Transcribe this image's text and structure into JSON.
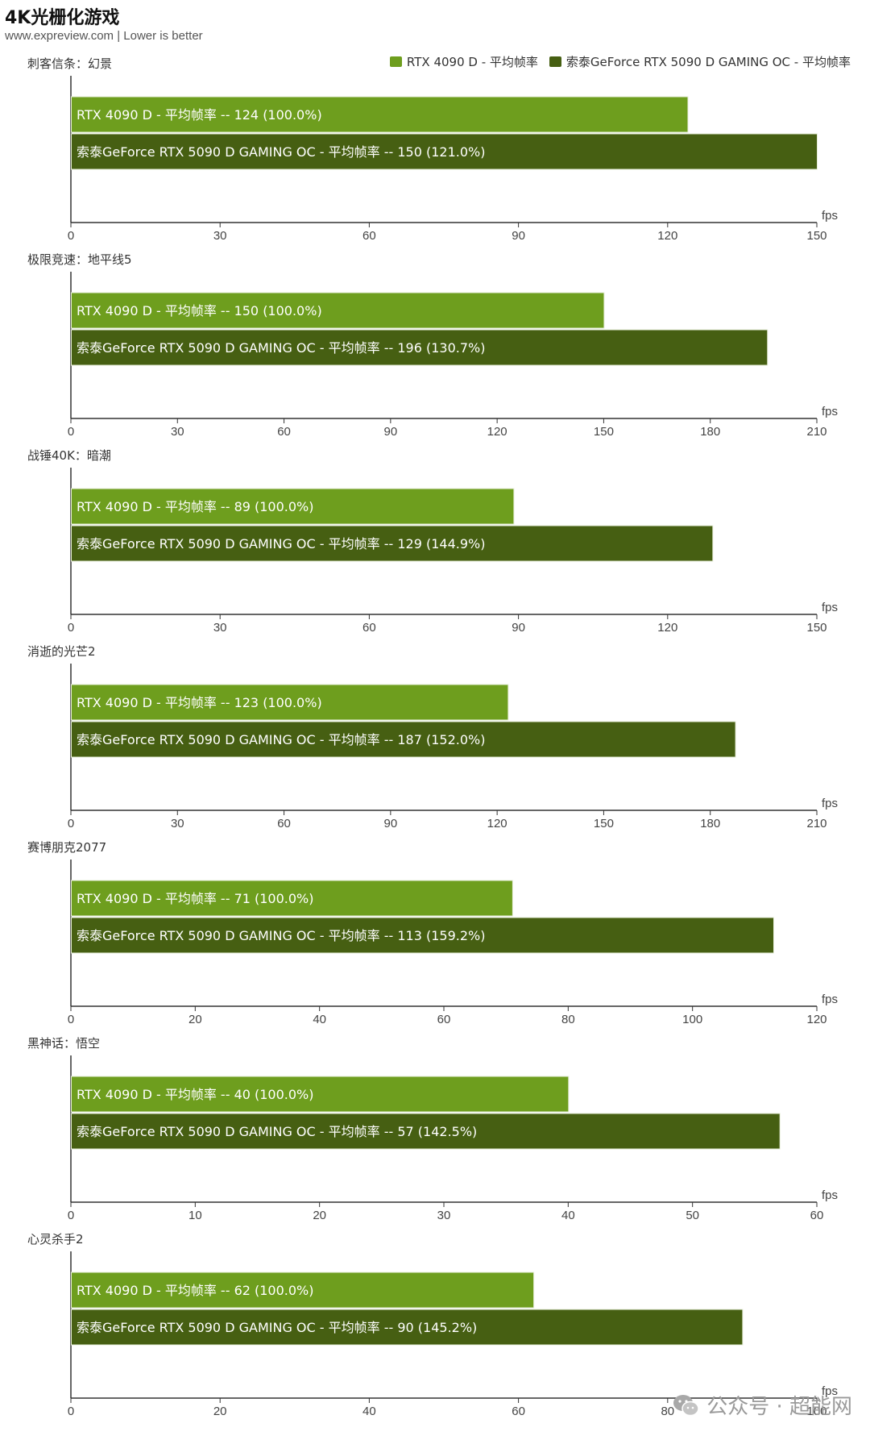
{
  "header": {
    "title": "4K光栅化游戏",
    "subtitle": "www.expreview.com | Lower is better"
  },
  "legend": [
    {
      "label": "RTX 4090 D - 平均帧率",
      "color": "#6e9e1e"
    },
    {
      "label": "索泰GeForce RTX 5090 D GAMING OC - 平均帧率",
      "color": "#465f12"
    }
  ],
  "colors": {
    "series_a": "#6e9e1e",
    "series_b": "#465f12",
    "axis": "#333333"
  },
  "chart_data": [
    {
      "type": "bar",
      "title": "刺客信条：幻景",
      "unit": "fps",
      "xlim": [
        0,
        150
      ],
      "ticks": [
        0,
        30,
        60,
        90,
        120,
        150
      ],
      "series": [
        {
          "name": "RTX 4090 D - 平均帧率",
          "value": 124,
          "label": "RTX 4090 D - 平均帧率  --  124 (100.0%)"
        },
        {
          "name": "索泰GeForce RTX 5090 D GAMING OC - 平均帧率",
          "value": 150,
          "label": "索泰GeForce RTX 5090 D GAMING OC - 平均帧率  --  150 (121.0%)"
        }
      ]
    },
    {
      "type": "bar",
      "title": "极限竞速：地平线5",
      "unit": "fps",
      "xlim": [
        0,
        210
      ],
      "ticks": [
        0,
        30,
        60,
        90,
        120,
        150,
        180,
        210
      ],
      "series": [
        {
          "name": "RTX 4090 D - 平均帧率",
          "value": 150,
          "label": "RTX 4090 D - 平均帧率  --  150 (100.0%)"
        },
        {
          "name": "索泰GeForce RTX 5090 D GAMING OC - 平均帧率",
          "value": 196,
          "label": "索泰GeForce RTX 5090 D GAMING OC - 平均帧率  --  196 (130.7%)"
        }
      ]
    },
    {
      "type": "bar",
      "title": "战锤40K：暗潮",
      "unit": "fps",
      "xlim": [
        0,
        150
      ],
      "ticks": [
        0,
        30,
        60,
        90,
        120,
        150
      ],
      "series": [
        {
          "name": "RTX 4090 D - 平均帧率",
          "value": 89,
          "label": "RTX 4090 D - 平均帧率  --  89 (100.0%)"
        },
        {
          "name": "索泰GeForce RTX 5090 D GAMING OC - 平均帧率",
          "value": 129,
          "label": "索泰GeForce RTX 5090 D GAMING OC - 平均帧率  --  129 (144.9%)"
        }
      ]
    },
    {
      "type": "bar",
      "title": "消逝的光芒2",
      "unit": "fps",
      "xlim": [
        0,
        210
      ],
      "ticks": [
        0,
        30,
        60,
        90,
        120,
        150,
        180,
        210
      ],
      "series": [
        {
          "name": "RTX 4090 D - 平均帧率",
          "value": 123,
          "label": "RTX 4090 D - 平均帧率  --  123 (100.0%)"
        },
        {
          "name": "索泰GeForce RTX 5090 D GAMING OC - 平均帧率",
          "value": 187,
          "label": "索泰GeForce RTX 5090 D GAMING OC - 平均帧率  --  187 (152.0%)"
        }
      ]
    },
    {
      "type": "bar",
      "title": "赛博朋克2077",
      "unit": "fps",
      "xlim": [
        0,
        120
      ],
      "ticks": [
        0,
        20,
        40,
        60,
        80,
        100,
        120
      ],
      "series": [
        {
          "name": "RTX 4090 D - 平均帧率",
          "value": 71,
          "label": "RTX 4090 D - 平均帧率  --  71 (100.0%)"
        },
        {
          "name": "索泰GeForce RTX 5090 D GAMING OC - 平均帧率",
          "value": 113,
          "label": "索泰GeForce RTX 5090 D GAMING OC - 平均帧率  --  113 (159.2%)"
        }
      ]
    },
    {
      "type": "bar",
      "title": "黑神话：悟空",
      "unit": "fps",
      "xlim": [
        0,
        60
      ],
      "ticks": [
        0,
        10,
        20,
        30,
        40,
        50,
        60
      ],
      "series": [
        {
          "name": "RTX 4090 D - 平均帧率",
          "value": 40,
          "label": "RTX 4090 D - 平均帧率  --  40 (100.0%)"
        },
        {
          "name": "索泰GeForce RTX 5090 D GAMING OC - 平均帧率",
          "value": 57,
          "label": "索泰GeForce RTX 5090 D GAMING OC - 平均帧率  --  57 (142.5%)"
        }
      ]
    },
    {
      "type": "bar",
      "title": "心灵杀手2",
      "unit": "fps",
      "xlim": [
        0,
        100
      ],
      "ticks": [
        0,
        20,
        40,
        60,
        80,
        100
      ],
      "series": [
        {
          "name": "RTX 4090 D - 平均帧率",
          "value": 62,
          "label": "RTX 4090 D - 平均帧率  --  62 (100.0%)"
        },
        {
          "name": "索泰GeForce RTX 5090 D GAMING OC - 平均帧率",
          "value": 90,
          "label": "索泰GeForce RTX 5090 D GAMING OC - 平均帧率  --  90 (145.2%)"
        }
      ]
    }
  ],
  "watermark": {
    "text": "公众号 · 超能网",
    "icon": "wechat-icon"
  }
}
